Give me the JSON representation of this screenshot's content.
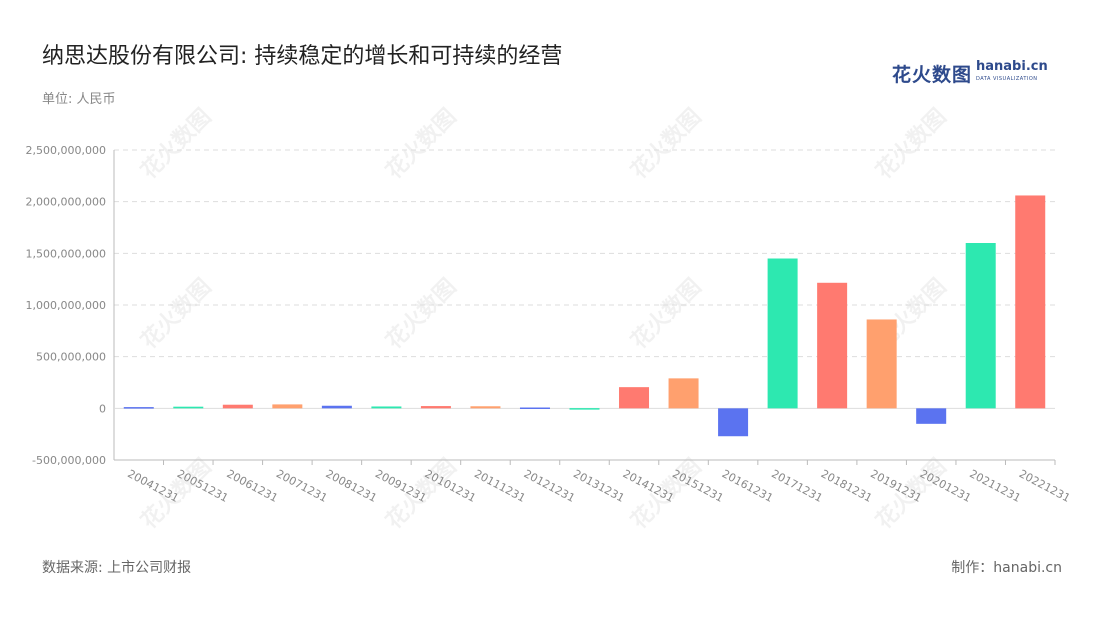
{
  "header": {
    "title": "纳思达股份有限公司: 持续稳定的增长和可持续的经营",
    "unit": "单位: 人民币"
  },
  "logo": {
    "cn": "花火数图",
    "en": "hanabi.cn",
    "sub": "DATA VISUALIZATION"
  },
  "footer": {
    "source": "数据来源: 上市公司财报",
    "maker": "制作：hanabi.cn"
  },
  "colors": {
    "blue": "#5b73f0",
    "green": "#2de8b0",
    "red": "#ff7a70",
    "orange": "#ffa06e",
    "grid": "#dddddd",
    "axis": "#bbbbbb"
  },
  "chart_data": {
    "type": "bar",
    "categories": [
      "20041231",
      "20051231",
      "20061231",
      "20071231",
      "20081231",
      "20091231",
      "20101231",
      "20111231",
      "20121231",
      "20131231",
      "20141231",
      "20151231",
      "20161231",
      "20171231",
      "20181231",
      "20191231",
      "20201231",
      "20211231",
      "20221231"
    ],
    "values": [
      12000000,
      16000000,
      35000000,
      38000000,
      25000000,
      18000000,
      22000000,
      20000000,
      8000000,
      2000000,
      205000000,
      290000000,
      -270000000,
      1450000000,
      1215000000,
      860000000,
      -150000000,
      1600000000,
      2060000000
    ],
    "bar_colors": [
      "#5b73f0",
      "#2de8b0",
      "#ff7a70",
      "#ffa06e",
      "#5b73f0",
      "#2de8b0",
      "#ff7a70",
      "#ffa06e",
      "#5b73f0",
      "#2de8b0",
      "#ff7a70",
      "#ffa06e",
      "#5b73f0",
      "#2de8b0",
      "#ff7a70",
      "#ffa06e",
      "#5b73f0",
      "#2de8b0",
      "#ff7a70"
    ],
    "y_ticks": [
      -500000000,
      0,
      500000000,
      1000000000,
      1500000000,
      2000000000,
      2500000000
    ],
    "y_tick_labels": [
      "-500,000,000",
      "0",
      "500,000,000",
      "1,000,000,000",
      "1,500,000,000",
      "2,000,000,000",
      "2,500,000,000"
    ],
    "ylim": [
      -500000000,
      2500000000
    ],
    "grid": true,
    "legend": "none"
  }
}
